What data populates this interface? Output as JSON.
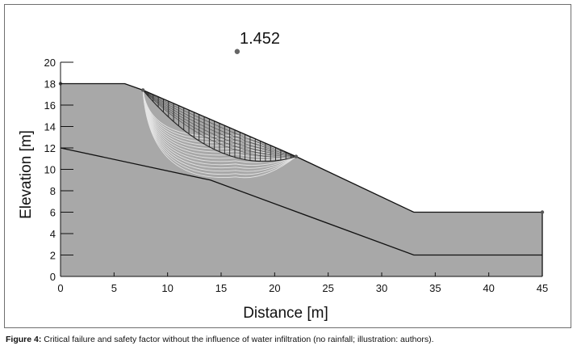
{
  "chart_data": {
    "type": "slope-stability-section",
    "title": "",
    "xlabel": "Distance [m]",
    "ylabel": "Elevation [m]",
    "xlim": [
      0,
      45
    ],
    "ylim": [
      0,
      20
    ],
    "xticks": [
      0,
      5,
      10,
      15,
      20,
      25,
      30,
      35,
      40,
      45
    ],
    "yticks": [
      0,
      2,
      4,
      6,
      8,
      10,
      12,
      14,
      16,
      18,
      20
    ],
    "safety_factor": "1.452",
    "safety_factor_point": {
      "x": 16.5,
      "y": 21
    },
    "ground_surface": {
      "x": [
        0,
        6,
        7.7,
        22,
        33,
        45
      ],
      "y": [
        18,
        18,
        17.4,
        11.2,
        6,
        6
      ]
    },
    "layer_boundary": {
      "x": [
        0,
        14,
        33,
        45
      ],
      "y": [
        12,
        9,
        2,
        2
      ]
    },
    "critical_slip_surface": {
      "entry": {
        "x": 7.7,
        "y": 17.4
      },
      "exit": {
        "x": 22,
        "y": 11.2
      },
      "bottom_y": 11.0
    },
    "trial_slip_surfaces_bottom_y": [
      9.3,
      9.6,
      9.9,
      10.2,
      10.5,
      10.8,
      11.1,
      11.4,
      11.7,
      12.0,
      12.3,
      12.6,
      12.9,
      13.2
    ],
    "slice_count": 30,
    "colors": {
      "soil": "#a8a8a8",
      "lines": "#111111",
      "trial_surfaces": "#e4e4e4",
      "slices": "#222222"
    }
  },
  "caption": {
    "label": "Figure 4:",
    "text": " Critical failure and safety factor without the influence of water infiltration (no rainfall; illustration: authors)."
  }
}
